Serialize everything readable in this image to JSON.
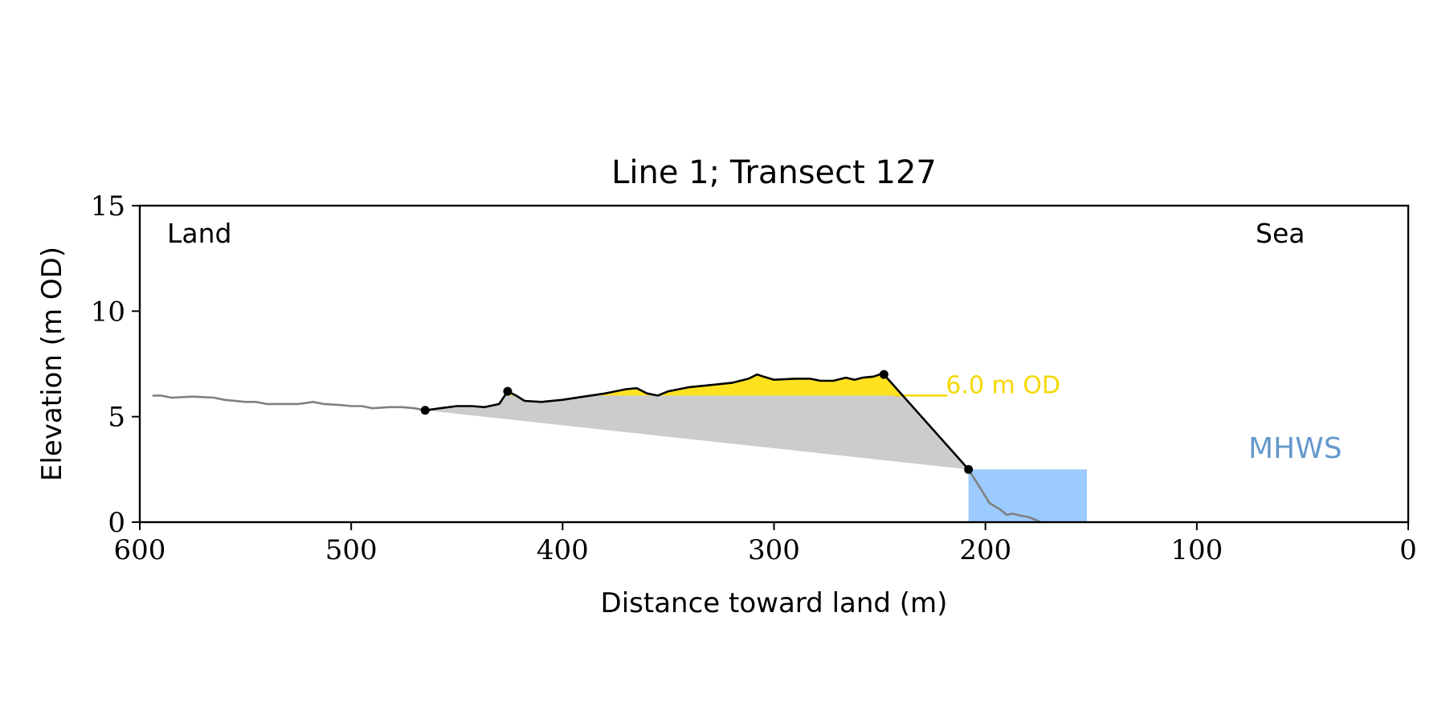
{
  "chart_data": {
    "type": "line",
    "title": "Line 1; Transect 127",
    "xlabel": "Distance toward land (m)",
    "ylabel": "Elevation (m OD)",
    "xlim": [
      600,
      0
    ],
    "ylim": [
      0,
      15
    ],
    "x_ticks": [
      600,
      500,
      400,
      300,
      200,
      100,
      0
    ],
    "y_ticks": [
      0,
      5,
      10,
      15
    ],
    "x_tick_labels": [
      "600",
      "500",
      "400",
      "300",
      "200",
      "100",
      "0"
    ],
    "y_tick_labels": [
      "0",
      "5",
      "10",
      "15"
    ],
    "grid": false,
    "annotations": {
      "land": "Land",
      "sea": "Sea",
      "od_level": "6.0 m OD",
      "mhws": "MHWS"
    },
    "od_level_value": 6.0,
    "mhws_value": 2.5,
    "mhws_x_range": [
      208,
      152
    ],
    "od_line_x_range": [
      243,
      218
    ],
    "colors": {
      "profile_land": "#808080",
      "profile_dune": "#000000",
      "fill_below": "#cccccc",
      "fill_above_od": "#ffe21f",
      "od_label": "#f5d800",
      "mhws_fill": "#9ccbff",
      "mhws_label": "#6699cc"
    },
    "series": [
      {
        "role": "landward_profile",
        "x": [
          594,
          590,
          585,
          575,
          565,
          560,
          550,
          545,
          540,
          535,
          530,
          525,
          518,
          513,
          505,
          500,
          495,
          490,
          482,
          476,
          470,
          465
        ],
        "y": [
          6.0,
          6.0,
          5.9,
          5.95,
          5.9,
          5.8,
          5.7,
          5.7,
          5.6,
          5.6,
          5.6,
          5.6,
          5.7,
          5.6,
          5.55,
          5.5,
          5.5,
          5.4,
          5.45,
          5.45,
          5.4,
          5.3
        ]
      },
      {
        "role": "dune_profile",
        "x": [
          465,
          458,
          450,
          443,
          437,
          430,
          426,
          422,
          418,
          410,
          400,
          390,
          380,
          370,
          365,
          360,
          355,
          350,
          340,
          330,
          320,
          312,
          308,
          305,
          300,
          290,
          283,
          278,
          272,
          266,
          262,
          258,
          253,
          250,
          248
        ],
        "y": [
          5.3,
          5.4,
          5.5,
          5.5,
          5.45,
          5.6,
          6.2,
          6.0,
          5.75,
          5.7,
          5.8,
          5.95,
          6.1,
          6.3,
          6.35,
          6.1,
          6.0,
          6.2,
          6.4,
          6.5,
          6.6,
          6.8,
          7.0,
          6.9,
          6.75,
          6.8,
          6.8,
          6.7,
          6.7,
          6.85,
          6.75,
          6.85,
          6.9,
          7.0,
          7.0
        ]
      },
      {
        "role": "dune_front_face",
        "x": [
          248,
          208
        ],
        "y": [
          7.0,
          2.5
        ]
      },
      {
        "role": "beach_profile",
        "x": [
          208,
          203,
          198,
          193,
          190,
          187,
          183,
          180,
          176,
          174
        ],
        "y": [
          2.5,
          1.7,
          0.9,
          0.6,
          0.35,
          0.4,
          0.3,
          0.25,
          0.1,
          0.0
        ]
      }
    ],
    "key_points": [
      {
        "x": 465,
        "y": 5.3
      },
      {
        "x": 426,
        "y": 6.2
      },
      {
        "x": 248,
        "y": 7.0
      },
      {
        "x": 208,
        "y": 2.5
      }
    ]
  }
}
